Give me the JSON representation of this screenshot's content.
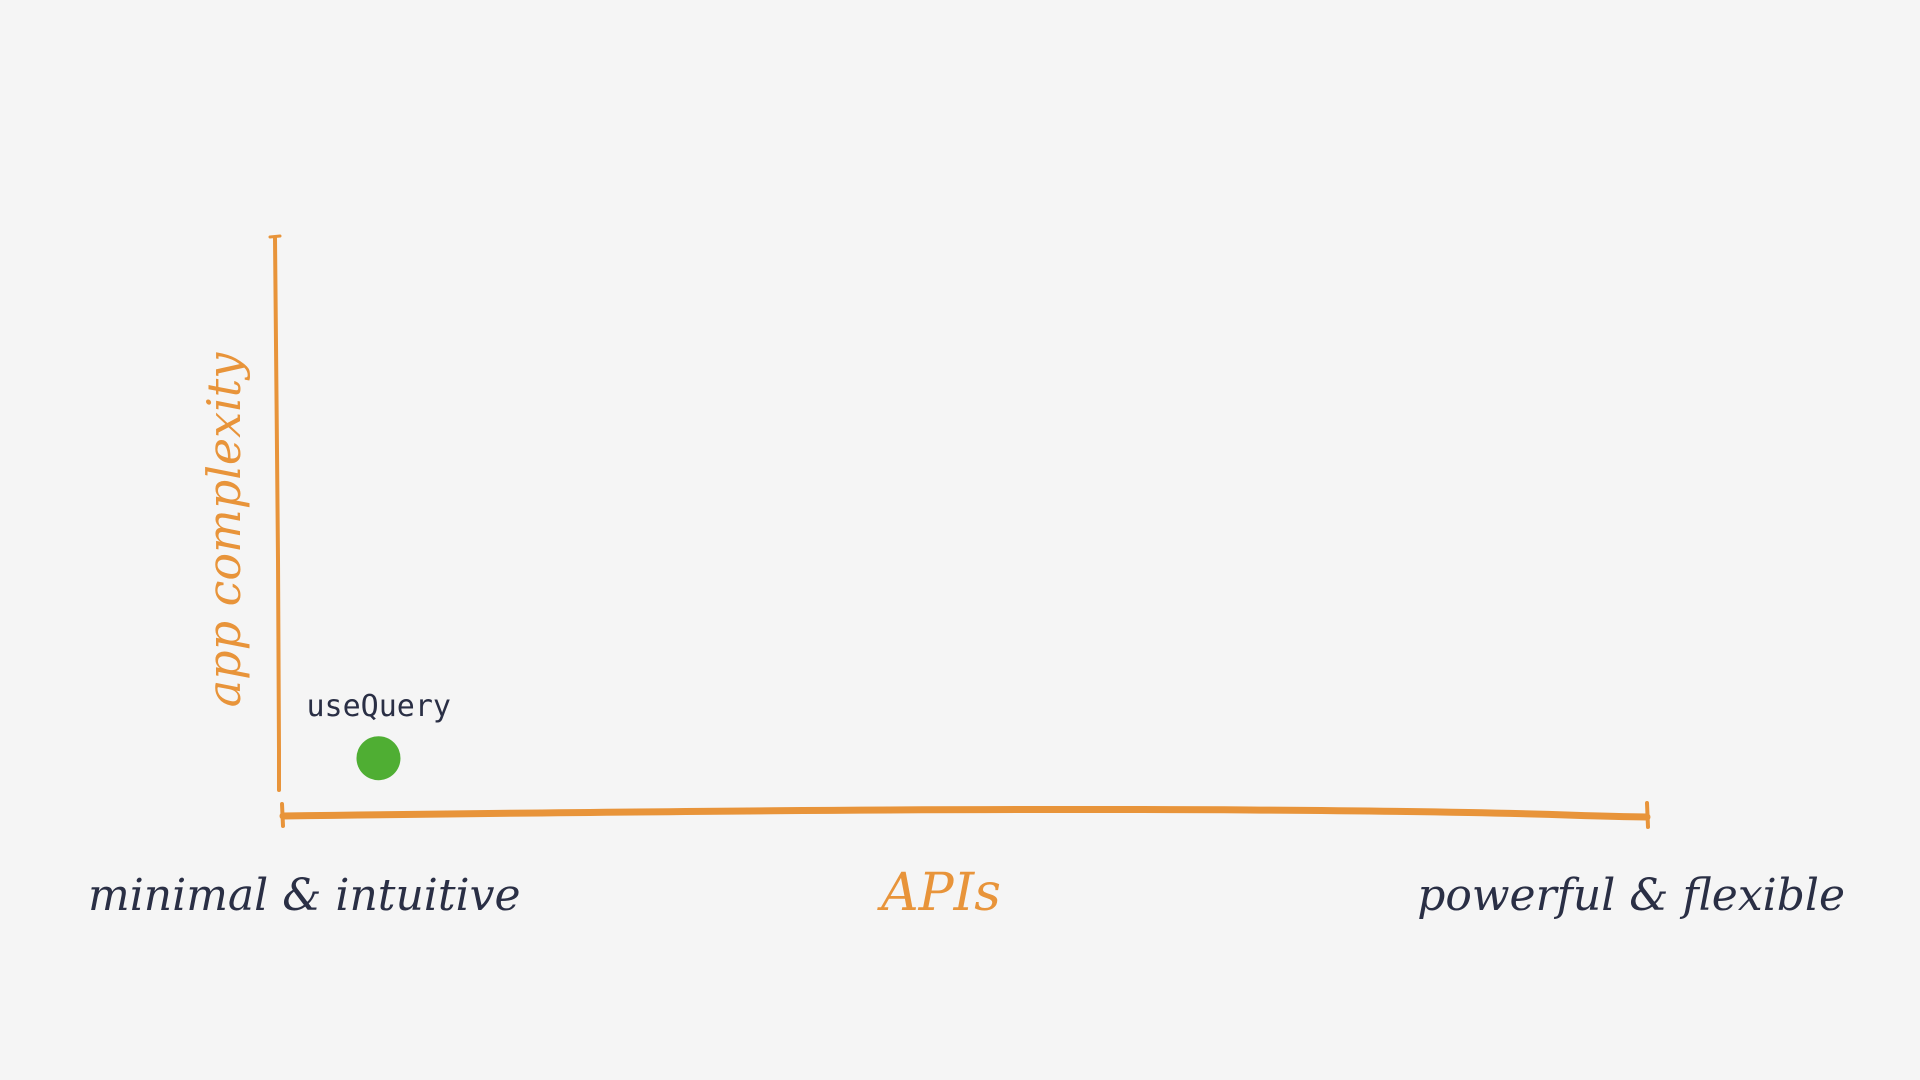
{
  "colors": {
    "background": "#f5f5f5",
    "axis": "#e8943a",
    "axis_label": "#e8943a",
    "end_label": "#2a2f45",
    "point": "#4fae33",
    "point_label": "#2a2f45"
  },
  "axes": {
    "x_label": "APIs",
    "y_label": "app complexity",
    "x_left_label": "minimal & intuitive",
    "x_right_label": "powerful & flexible"
  },
  "points": [
    {
      "label": "useQuery",
      "x": 0.07,
      "y": 0.1
    }
  ]
}
